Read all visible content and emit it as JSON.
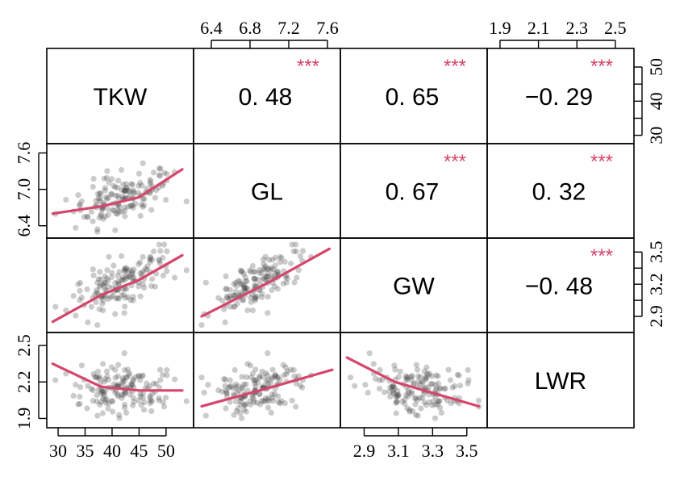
{
  "chart_data": {
    "type": "scatter",
    "variables": [
      {
        "name": "TKW",
        "range": [
          28.5,
          54.5
        ],
        "ticks": [
          30,
          35,
          40,
          45,
          50
        ]
      },
      {
        "name": "GL",
        "range": [
          6.25,
          7.7
        ],
        "ticks": [
          6.4,
          6.8,
          7.2,
          7.6
        ]
      },
      {
        "name": "GW",
        "range": [
          2.78,
          3.6
        ],
        "ticks": [
          2.9,
          3.1,
          3.3,
          3.5
        ]
      },
      {
        "name": "LWR",
        "range": [
          1.85,
          2.58
        ],
        "ticks": [
          1.9,
          2.1,
          2.3,
          2.5
        ]
      }
    ],
    "tick_text": {
      "tkw": [
        "30",
        "35",
        "40",
        "45",
        "50"
      ],
      "tkw_right": [
        "30",
        "40",
        "50"
      ],
      "gl": [
        "6.4",
        "6.8",
        "7.2",
        "7.6"
      ],
      "gl_left": [
        "6.4",
        "7.0",
        "7.6"
      ],
      "gw_bottom": [
        "2.9",
        "3.1",
        "3.3",
        "3.5"
      ],
      "gw_right": [
        "2.9",
        "3.2",
        "3.5"
      ],
      "lwr_top": [
        "1.9",
        "2.1",
        "2.3",
        "2.5"
      ],
      "lwr_left": [
        "1.9",
        "2.2",
        "2.5"
      ]
    },
    "correlations": [
      {
        "id": "tkw-gl",
        "row": 0,
        "col": 1,
        "text": "0. 48",
        "stars": "***"
      },
      {
        "id": "tkw-gw",
        "row": 0,
        "col": 2,
        "text": "0. 65",
        "stars": "***"
      },
      {
        "id": "tkw-lwr",
        "row": 0,
        "col": 3,
        "text": "−0. 29",
        "stars": "***"
      },
      {
        "id": "gl-gw",
        "row": 1,
        "col": 2,
        "text": "0. 67",
        "stars": "***"
      },
      {
        "id": "gl-lwr",
        "row": 1,
        "col": 3,
        "text": "0. 32",
        "stars": "***"
      },
      {
        "id": "gw-lwr",
        "row": 2,
        "col": 3,
        "text": "−0. 48",
        "stars": "***"
      }
    ],
    "smooth_lines": [
      {
        "row": 1,
        "col": 0,
        "x": [
          29,
          38,
          45,
          53
        ],
        "y": [
          6.6,
          6.72,
          6.87,
          7.33
        ]
      },
      {
        "row": 2,
        "col": 0,
        "x": [
          29,
          38,
          45,
          53
        ],
        "y": [
          2.85,
          3.1,
          3.24,
          3.47
        ]
      },
      {
        "row": 2,
        "col": 1,
        "x": [
          6.3,
          7.0,
          7.62
        ],
        "y": [
          2.9,
          3.22,
          3.53
        ]
      },
      {
        "row": 3,
        "col": 0,
        "x": [
          29,
          38,
          45,
          53
        ],
        "y": [
          2.35,
          2.16,
          2.13,
          2.13
        ]
      },
      {
        "row": 3,
        "col": 1,
        "x": [
          6.3,
          6.9,
          7.65
        ],
        "y": [
          2.0,
          2.13,
          2.3
        ]
      },
      {
        "row": 3,
        "col": 2,
        "x": [
          2.8,
          3.08,
          3.25,
          3.57
        ],
        "y": [
          2.4,
          2.2,
          2.13,
          2.0
        ]
      }
    ],
    "n_points": 150,
    "point_color": "#444444",
    "smooth_color": "#d6456a",
    "star_color": "#d6456a"
  }
}
